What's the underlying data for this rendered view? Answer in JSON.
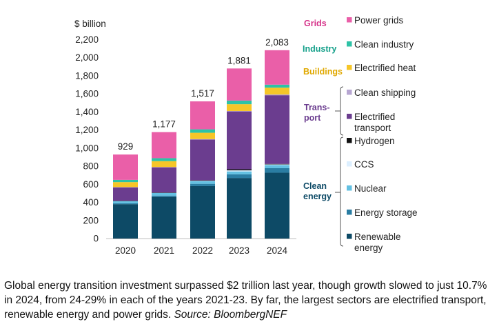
{
  "chart_data": {
    "type": "bar",
    "stacked": true,
    "yunit": "$ billion",
    "ylim": [
      0,
      2200
    ],
    "yticks": [
      0,
      200,
      400,
      600,
      800,
      1000,
      1200,
      1400,
      1600,
      1800,
      2000,
      2200
    ],
    "ytick_labels": [
      "0",
      "200",
      "400",
      "600",
      "800",
      "1,000",
      "1,200",
      "1,400",
      "1,600",
      "1,800",
      "2,000",
      "2,200"
    ],
    "categories": [
      "2020",
      "2021",
      "2022",
      "2023",
      "2024"
    ],
    "totals": [
      929,
      1177,
      1517,
      1881,
      2083
    ],
    "total_labels": [
      "929",
      "1,177",
      "1,517",
      "1,881",
      "2,083"
    ],
    "series": [
      {
        "key": "renewable",
        "name": "Renewable energy",
        "legend_lines": [
          "Renewable",
          "energy"
        ],
        "color": "#0d4a66",
        "values": [
          380,
          460,
          580,
          670,
          728
        ]
      },
      {
        "key": "storage",
        "name": "Energy storage",
        "legend_lines": [
          "Energy storage"
        ],
        "color": "#2a7da3",
        "values": [
          10,
          15,
          25,
          40,
          50
        ]
      },
      {
        "key": "nuclear",
        "name": "Nuclear",
        "legend_lines": [
          "Nuclear"
        ],
        "color": "#63c0e2",
        "values": [
          25,
          30,
          30,
          32,
          34
        ]
      },
      {
        "key": "ccs",
        "name": "CCS",
        "legend_lines": [
          "CCS"
        ],
        "color": "#dcefff",
        "values": [
          2,
          3,
          6,
          12,
          8
        ]
      },
      {
        "key": "hydrogen",
        "name": "Hydrogen",
        "legend_lines": [
          "Hydrogen"
        ],
        "color": "#111111",
        "values": [
          1,
          1,
          3,
          12,
          5
        ]
      },
      {
        "key": "transport",
        "name": "Electrified transport",
        "legend_lines": [
          "Electrified",
          "transport"
        ],
        "color": "#6b3d8f",
        "values": [
          150,
          280,
          450,
          640,
          760
        ]
      },
      {
        "key": "shipping",
        "name": "Clean shipping",
        "legend_lines": [
          "Clean shipping"
        ],
        "color": "#b7a6d2",
        "values": [
          1,
          2,
          6,
          5,
          8
        ]
      },
      {
        "key": "heat",
        "name": "Electrified heat",
        "legend_lines": [
          "Electrified heat"
        ],
        "color": "#f6c628",
        "values": [
          55,
          65,
          70,
          75,
          76
        ]
      },
      {
        "key": "industry",
        "name": "Clean industry",
        "legend_lines": [
          "Clean industry"
        ],
        "color": "#2ec2a6",
        "values": [
          25,
          33,
          38,
          40,
          33
        ]
      },
      {
        "key": "grids",
        "name": "Power grids",
        "legend_lines": [
          "Power grids"
        ],
        "color": "#ea5fa8",
        "values": [
          280,
          288,
          309,
          355,
          381
        ]
      }
    ],
    "legend_order": [
      "grids",
      "industry",
      "heat",
      "shipping",
      "transport",
      "hydrogen",
      "ccs",
      "nuclear",
      "storage",
      "renewable"
    ],
    "groups": [
      {
        "key": "grids",
        "label_lines": [
          "Grids"
        ],
        "color": "#d6338a",
        "members": [
          "grids"
        ]
      },
      {
        "key": "industry",
        "label_lines": [
          "Industry"
        ],
        "color": "#15a08a",
        "members": [
          "industry"
        ]
      },
      {
        "key": "buildings",
        "label_lines": [
          "Buildings"
        ],
        "color": "#e0a800",
        "members": [
          "heat"
        ]
      },
      {
        "key": "transport",
        "label_lines": [
          "Trans-",
          "port"
        ],
        "color": "#6b3d8f",
        "members": [
          "shipping",
          "transport"
        ]
      },
      {
        "key": "clean",
        "label_lines": [
          "Clean",
          "energy"
        ],
        "color": "#0d4a66",
        "members": [
          "hydrogen",
          "ccs",
          "nuclear",
          "storage",
          "renewable"
        ]
      }
    ]
  },
  "caption": {
    "text": "Global energy transition investment surpassed $2 trillion last year, though growth slowed to just 10.7% in 2024, from 24-29% in each of the years 2021-23. By far, the largest sectors are electrified transport, renewable energy and power grids.",
    "source": "Source: BloombergNEF"
  }
}
